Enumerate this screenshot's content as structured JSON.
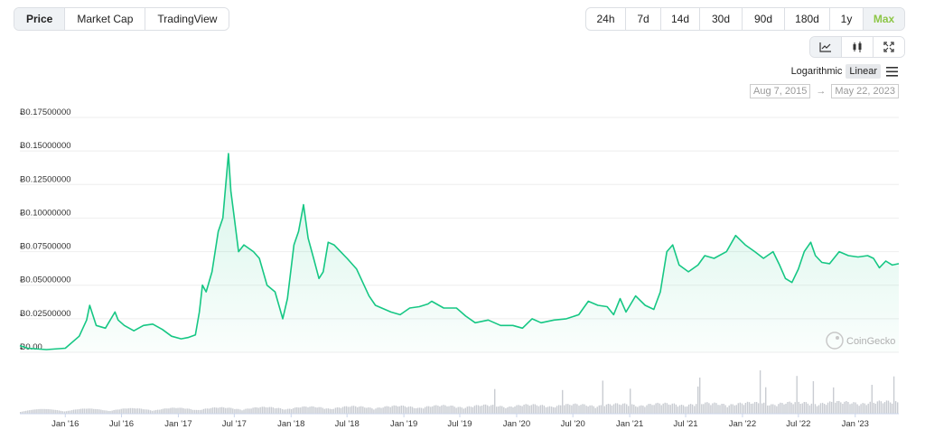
{
  "toolbar": {
    "tabs": [
      {
        "label": "Price",
        "active": true
      },
      {
        "label": "Market Cap",
        "active": false
      },
      {
        "label": "TradingView",
        "active": false
      }
    ],
    "ranges": [
      {
        "label": "24h",
        "active": false
      },
      {
        "label": "7d",
        "active": false
      },
      {
        "label": "14d",
        "active": false
      },
      {
        "label": "30d",
        "active": false
      },
      {
        "label": "90d",
        "active": false
      },
      {
        "label": "180d",
        "active": false
      },
      {
        "label": "1y",
        "active": false
      },
      {
        "label": "Max",
        "active": true
      }
    ],
    "chart_types": [
      {
        "icon": "line-chart-icon",
        "active": true
      },
      {
        "icon": "candlestick-icon",
        "active": false
      },
      {
        "icon": "fullscreen-icon",
        "active": false
      }
    ],
    "scale": {
      "logarithmic": "Logarithmic",
      "linear": "Linear",
      "selected": "linear"
    },
    "date_range": {
      "from": "Aug 7, 2015",
      "to": "May 22, 2023",
      "arrow": "→"
    }
  },
  "watermark": "CoinGecko",
  "colors": {
    "line": "#16c784",
    "volume": "#c9ccd2",
    "grid": "#eeeeee",
    "accent": "#8dc647"
  },
  "chart_data": {
    "type": "area",
    "title": "",
    "xlabel": "",
    "ylabel": "",
    "ylim": [
      0,
      0.175
    ],
    "x_range": [
      "2015-08-07",
      "2023-05-22"
    ],
    "y_ticks": [
      "Ƀ0.00",
      "Ƀ0.02500000",
      "Ƀ0.05000000",
      "Ƀ0.07500000",
      "Ƀ0.10000000",
      "Ƀ0.12500000",
      "Ƀ0.15000000",
      "Ƀ0.17500000"
    ],
    "y_tick_values": [
      0,
      0.025,
      0.05,
      0.075,
      0.1,
      0.125,
      0.15,
      0.175
    ],
    "x_ticks": [
      {
        "label": "Jan '16",
        "date": "2016-01-01"
      },
      {
        "label": "Jul '16",
        "date": "2016-07-01"
      },
      {
        "label": "Jan '17",
        "date": "2017-01-01"
      },
      {
        "label": "Jul '17",
        "date": "2017-07-01"
      },
      {
        "label": "Jan '18",
        "date": "2018-01-01"
      },
      {
        "label": "Jul '18",
        "date": "2018-07-01"
      },
      {
        "label": "Jan '19",
        "date": "2019-01-01"
      },
      {
        "label": "Jul '19",
        "date": "2019-07-01"
      },
      {
        "label": "Jan '20",
        "date": "2020-01-01"
      },
      {
        "label": "Jul '20",
        "date": "2020-07-01"
      },
      {
        "label": "Jan '21",
        "date": "2021-01-01"
      },
      {
        "label": "Jul '21",
        "date": "2021-07-01"
      },
      {
        "label": "Jan '22",
        "date": "2022-01-01"
      },
      {
        "label": "Jul '22",
        "date": "2022-07-01"
      },
      {
        "label": "Jan '23",
        "date": "2023-01-01"
      }
    ],
    "series": [
      {
        "points": [
          [
            "2015-08-07",
            0.005
          ],
          [
            "2015-09-01",
            0.003
          ],
          [
            "2015-11-01",
            0.002
          ],
          [
            "2016-01-01",
            0.003
          ],
          [
            "2016-02-15",
            0.012
          ],
          [
            "2016-03-10",
            0.024
          ],
          [
            "2016-03-20",
            0.035
          ],
          [
            "2016-04-10",
            0.02
          ],
          [
            "2016-05-10",
            0.018
          ],
          [
            "2016-06-10",
            0.03
          ],
          [
            "2016-06-20",
            0.024
          ],
          [
            "2016-07-10",
            0.02
          ],
          [
            "2016-08-10",
            0.016
          ],
          [
            "2016-09-10",
            0.02
          ],
          [
            "2016-10-10",
            0.021
          ],
          [
            "2016-11-10",
            0.017
          ],
          [
            "2016-12-10",
            0.012
          ],
          [
            "2017-01-10",
            0.01
          ],
          [
            "2017-02-01",
            0.011
          ],
          [
            "2017-02-25",
            0.013
          ],
          [
            "2017-03-10",
            0.03
          ],
          [
            "2017-03-20",
            0.05
          ],
          [
            "2017-04-01",
            0.045
          ],
          [
            "2017-04-20",
            0.06
          ],
          [
            "2017-05-10",
            0.09
          ],
          [
            "2017-05-25",
            0.1
          ],
          [
            "2017-06-12",
            0.148
          ],
          [
            "2017-06-20",
            0.12
          ],
          [
            "2017-07-01",
            0.1
          ],
          [
            "2017-07-15",
            0.075
          ],
          [
            "2017-08-01",
            0.08
          ],
          [
            "2017-09-01",
            0.075
          ],
          [
            "2017-09-20",
            0.07
          ],
          [
            "2017-10-15",
            0.05
          ],
          [
            "2017-11-10",
            0.045
          ],
          [
            "2017-12-05",
            0.025
          ],
          [
            "2017-12-20",
            0.04
          ],
          [
            "2018-01-10",
            0.08
          ],
          [
            "2018-01-25",
            0.09
          ],
          [
            "2018-02-10",
            0.11
          ],
          [
            "2018-02-25",
            0.085
          ],
          [
            "2018-03-15",
            0.07
          ],
          [
            "2018-04-01",
            0.055
          ],
          [
            "2018-04-15",
            0.06
          ],
          [
            "2018-05-01",
            0.082
          ],
          [
            "2018-05-20",
            0.08
          ],
          [
            "2018-06-10",
            0.075
          ],
          [
            "2018-07-01",
            0.07
          ],
          [
            "2018-08-01",
            0.062
          ],
          [
            "2018-09-10",
            0.042
          ],
          [
            "2018-10-01",
            0.035
          ],
          [
            "2018-11-20",
            0.03
          ],
          [
            "2018-12-20",
            0.028
          ],
          [
            "2019-01-20",
            0.033
          ],
          [
            "2019-02-20",
            0.034
          ],
          [
            "2019-03-20",
            0.036
          ],
          [
            "2019-04-01",
            0.038
          ],
          [
            "2019-05-10",
            0.033
          ],
          [
            "2019-06-20",
            0.033
          ],
          [
            "2019-07-20",
            0.027
          ],
          [
            "2019-08-20",
            0.022
          ],
          [
            "2019-10-01",
            0.024
          ],
          [
            "2019-11-10",
            0.02
          ],
          [
            "2019-12-20",
            0.02
          ],
          [
            "2020-01-20",
            0.018
          ],
          [
            "2020-02-20",
            0.025
          ],
          [
            "2020-03-20",
            0.022
          ],
          [
            "2020-05-01",
            0.024
          ],
          [
            "2020-06-10",
            0.025
          ],
          [
            "2020-07-20",
            0.028
          ],
          [
            "2020-08-20",
            0.038
          ],
          [
            "2020-09-20",
            0.035
          ],
          [
            "2020-10-20",
            0.034
          ],
          [
            "2020-11-10",
            0.028
          ],
          [
            "2020-12-01",
            0.04
          ],
          [
            "2020-12-20",
            0.03
          ],
          [
            "2021-01-20",
            0.042
          ],
          [
            "2021-02-20",
            0.035
          ],
          [
            "2021-03-20",
            0.032
          ],
          [
            "2021-04-10",
            0.045
          ],
          [
            "2021-05-01",
            0.075
          ],
          [
            "2021-05-20",
            0.08
          ],
          [
            "2021-06-10",
            0.065
          ],
          [
            "2021-07-10",
            0.06
          ],
          [
            "2021-08-10",
            0.065
          ],
          [
            "2021-09-01",
            0.072
          ],
          [
            "2021-10-01",
            0.07
          ],
          [
            "2021-11-10",
            0.075
          ],
          [
            "2021-12-10",
            0.087
          ],
          [
            "2022-01-10",
            0.08
          ],
          [
            "2022-02-10",
            0.075
          ],
          [
            "2022-03-10",
            0.07
          ],
          [
            "2022-04-10",
            0.075
          ],
          [
            "2022-05-01",
            0.065
          ],
          [
            "2022-05-20",
            0.055
          ],
          [
            "2022-06-10",
            0.052
          ],
          [
            "2022-07-01",
            0.062
          ],
          [
            "2022-07-20",
            0.075
          ],
          [
            "2022-08-10",
            0.082
          ],
          [
            "2022-08-25",
            0.072
          ],
          [
            "2022-09-15",
            0.067
          ],
          [
            "2022-10-10",
            0.066
          ],
          [
            "2022-11-10",
            0.075
          ],
          [
            "2022-12-10",
            0.072
          ],
          [
            "2023-01-10",
            0.071
          ],
          [
            "2023-02-10",
            0.072
          ],
          [
            "2023-03-01",
            0.07
          ],
          [
            "2023-03-20",
            0.063
          ],
          [
            "2023-04-10",
            0.068
          ],
          [
            "2023-05-01",
            0.065
          ],
          [
            "2023-05-22",
            0.066
          ]
        ]
      }
    ]
  }
}
